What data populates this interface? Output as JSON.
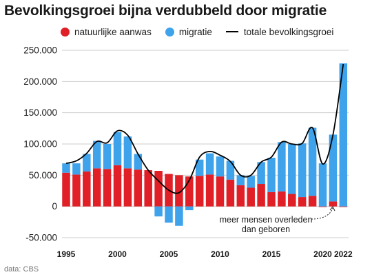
{
  "title": "Bevolkingsgroei bijna verdubbeld door migratie",
  "legend": {
    "natural": "natuurlijke aanwas",
    "migration": "migratie",
    "total": "totale bevolkingsgroei"
  },
  "colors": {
    "natural": "#e01f26",
    "migration": "#3fa3ec",
    "total": "#000000",
    "grid": "#cccccc"
  },
  "annotation": [
    "meer mensen overleden",
    "dan geboren"
  ],
  "source": "data: CBS",
  "chart_data": {
    "type": "bar",
    "stacked": true,
    "x": [
      1995,
      1996,
      1997,
      1998,
      1999,
      2000,
      2001,
      2002,
      2003,
      2004,
      2005,
      2006,
      2007,
      2008,
      2009,
      2010,
      2011,
      2012,
      2013,
      2014,
      2015,
      2016,
      2017,
      2018,
      2019,
      2020,
      2021,
      2022
    ],
    "series": [
      {
        "name": "natuurlijke aanwas",
        "values": [
          54000,
          51000,
          56000,
          61000,
          60000,
          66000,
          61000,
          59000,
          58000,
          57000,
          52000,
          50000,
          48000,
          49000,
          51000,
          48000,
          43000,
          34000,
          30000,
          36000,
          23000,
          24000,
          20000,
          15000,
          17000,
          -1000,
          8000,
          -1000
        ]
      },
      {
        "name": "migratie",
        "values": [
          15000,
          18000,
          28000,
          44000,
          40000,
          53000,
          51000,
          25000,
          0,
          -16000,
          -26000,
          -31000,
          -6000,
          26000,
          34000,
          32000,
          30000,
          16000,
          19000,
          35000,
          55000,
          79000,
          80000,
          86000,
          109000,
          69000,
          107000,
          229000
        ]
      },
      {
        "name": "totale bevolkingsgroei",
        "type": "line",
        "values": [
          69000,
          73000,
          85000,
          104000,
          102000,
          121000,
          114000,
          84000,
          58000,
          41000,
          26000,
          22000,
          42000,
          79000,
          88000,
          82000,
          72000,
          50000,
          50000,
          71000,
          79000,
          103000,
          100000,
          101000,
          126000,
          68000,
          115000,
          228000
        ]
      }
    ],
    "ylim": [
      -50000,
      250000
    ],
    "yticks": [
      "250.000",
      "200.000",
      "150.000",
      "100.000",
      "50.000",
      "0",
      "-50.000"
    ],
    "ytick_values": [
      250000,
      200000,
      150000,
      100000,
      50000,
      0,
      -50000
    ],
    "xticks": [
      "1995",
      "2000",
      "2005",
      "2010",
      "2015",
      "2020",
      "2022"
    ],
    "xtick_values": [
      1995,
      2000,
      2005,
      2010,
      2015,
      2020,
      2022
    ],
    "grid": true
  }
}
